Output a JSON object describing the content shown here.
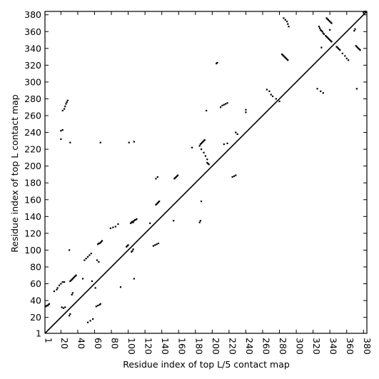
{
  "chart_data": {
    "type": "scatter",
    "xlabel": "Residue index of top L/5 contact map",
    "ylabel": "Residue index of top L contact map",
    "xlim": [
      1,
      384
    ],
    "ylim": [
      1,
      384
    ],
    "xticks": [
      1,
      20,
      40,
      60,
      80,
      100,
      120,
      140,
      160,
      180,
      200,
      220,
      240,
      260,
      280,
      300,
      320,
      340,
      360,
      380
    ],
    "yticks": [
      1,
      20,
      40,
      60,
      80,
      100,
      120,
      140,
      160,
      180,
      200,
      220,
      240,
      260,
      280,
      300,
      320,
      340,
      360,
      380
    ],
    "grid": false,
    "diagonal": [
      [
        1,
        1
      ],
      [
        384,
        384
      ]
    ],
    "series": [
      {
        "marker_color": "#000000",
        "points": [
          [
            2,
            33
          ],
          [
            3,
            34
          ],
          [
            4,
            34
          ],
          [
            5,
            35
          ],
          [
            6,
            36
          ],
          [
            12,
            51
          ],
          [
            15,
            53
          ],
          [
            16,
            55
          ],
          [
            18,
            58
          ],
          [
            20,
            60
          ],
          [
            22,
            62
          ],
          [
            24,
            62
          ],
          [
            20,
            242
          ],
          [
            22,
            243
          ],
          [
            22,
            266
          ],
          [
            24,
            268
          ],
          [
            25,
            271
          ],
          [
            26,
            274
          ],
          [
            27,
            276
          ],
          [
            28,
            278
          ],
          [
            20,
            232
          ],
          [
            31,
            228
          ],
          [
            30,
            100
          ],
          [
            21,
            32
          ],
          [
            23,
            31
          ],
          [
            25,
            32
          ],
          [
            30,
            22
          ],
          [
            31,
            24
          ],
          [
            33,
            47
          ],
          [
            34,
            49
          ],
          [
            31,
            63
          ],
          [
            32,
            64
          ],
          [
            33,
            65
          ],
          [
            34,
            66
          ],
          [
            35,
            67
          ],
          [
            36,
            68
          ],
          [
            37,
            69
          ],
          [
            38,
            70
          ],
          [
            46,
            66
          ],
          [
            48,
            88
          ],
          [
            50,
            90
          ],
          [
            52,
            92
          ],
          [
            54,
            94
          ],
          [
            56,
            96
          ],
          [
            55,
            16
          ],
          [
            58,
            18
          ],
          [
            52,
            14
          ],
          [
            57,
            63
          ],
          [
            61,
            55
          ],
          [
            62,
            33
          ],
          [
            64,
            34
          ],
          [
            66,
            35
          ],
          [
            67,
            36
          ],
          [
            63,
            88
          ],
          [
            65,
            86
          ],
          [
            64,
            107
          ],
          [
            65,
            108
          ],
          [
            66,
            108
          ],
          [
            67,
            109
          ],
          [
            68,
            110
          ],
          [
            69,
            111
          ],
          [
            67,
            228
          ],
          [
            79,
            126
          ],
          [
            82,
            127
          ],
          [
            85,
            128
          ],
          [
            88,
            131
          ],
          [
            91,
            56
          ],
          [
            98,
            104
          ],
          [
            99,
            105
          ],
          [
            100,
            106
          ],
          [
            104,
            98
          ],
          [
            105,
            99
          ],
          [
            106,
            101
          ],
          [
            103,
            132
          ],
          [
            104,
            133
          ],
          [
            105,
            134
          ],
          [
            106,
            133
          ],
          [
            107,
            135
          ],
          [
            108,
            136
          ],
          [
            109,
            136
          ],
          [
            110,
            137
          ],
          [
            101,
            228
          ],
          [
            107,
            229
          ],
          [
            107,
            66
          ],
          [
            126,
            132
          ],
          [
            130,
            105
          ],
          [
            132,
            106
          ],
          [
            134,
            107
          ],
          [
            136,
            108
          ],
          [
            133,
            154
          ],
          [
            134,
            155
          ],
          [
            135,
            156
          ],
          [
            136,
            157
          ],
          [
            137,
            158
          ],
          [
            133,
            185
          ],
          [
            135,
            187
          ],
          [
            154,
            135
          ],
          [
            155,
            185
          ],
          [
            156,
            186
          ],
          [
            157,
            187
          ],
          [
            158,
            188
          ],
          [
            159,
            189
          ],
          [
            176,
            222
          ],
          [
            185,
            133
          ],
          [
            186,
            135
          ],
          [
            187,
            158
          ],
          [
            185,
            224
          ],
          [
            186,
            226
          ],
          [
            187,
            227
          ],
          [
            188,
            228
          ],
          [
            189,
            229
          ],
          [
            190,
            230
          ],
          [
            191,
            231
          ],
          [
            187,
            220
          ],
          [
            190,
            216
          ],
          [
            192,
            212
          ],
          [
            194,
            208
          ],
          [
            194,
            204
          ],
          [
            195,
            203
          ],
          [
            196,
            202
          ],
          [
            193,
            266
          ],
          [
            205,
            322
          ],
          [
            206,
            323
          ],
          [
            210,
            270
          ],
          [
            212,
            272
          ],
          [
            214,
            273
          ],
          [
            216,
            274
          ],
          [
            218,
            275
          ],
          [
            214,
            226
          ],
          [
            218,
            227
          ],
          [
            224,
            187
          ],
          [
            226,
            188
          ],
          [
            228,
            189
          ],
          [
            228,
            240
          ],
          [
            230,
            238
          ],
          [
            240,
            264
          ],
          [
            240,
            267
          ],
          [
            265,
            291
          ],
          [
            268,
            289
          ],
          [
            270,
            285
          ],
          [
            272,
            283
          ],
          [
            276,
            280
          ],
          [
            280,
            277
          ],
          [
            283,
            333
          ],
          [
            284,
            332
          ],
          [
            285,
            331
          ],
          [
            286,
            330
          ],
          [
            287,
            329
          ],
          [
            288,
            328
          ],
          [
            289,
            327
          ],
          [
            290,
            326
          ],
          [
            285,
            376
          ],
          [
            287,
            374
          ],
          [
            289,
            372
          ],
          [
            290,
            369
          ],
          [
            291,
            366
          ],
          [
            327,
            366
          ],
          [
            328,
            364
          ],
          [
            329,
            362
          ],
          [
            330,
            361
          ],
          [
            331,
            360
          ],
          [
            332,
            358
          ],
          [
            333,
            357
          ],
          [
            335,
            355
          ],
          [
            336,
            354
          ],
          [
            337,
            353
          ],
          [
            338,
            352
          ],
          [
            339,
            351
          ],
          [
            340,
            350
          ],
          [
            341,
            349
          ],
          [
            342,
            348
          ],
          [
            336,
            376
          ],
          [
            337,
            375
          ],
          [
            338,
            374
          ],
          [
            339,
            373
          ],
          [
            340,
            372
          ],
          [
            341,
            371
          ],
          [
            342,
            370
          ],
          [
            325,
            292
          ],
          [
            329,
            289
          ],
          [
            332,
            287
          ],
          [
            330,
            341
          ],
          [
            340,
            362
          ],
          [
            348,
            342
          ],
          [
            349,
            341
          ],
          [
            350,
            340
          ],
          [
            351,
            339
          ],
          [
            352,
            338
          ],
          [
            355,
            334
          ],
          [
            358,
            331
          ],
          [
            360,
            328
          ],
          [
            362,
            326
          ],
          [
            369,
            361
          ],
          [
            370,
            363
          ],
          [
            372,
            292
          ],
          [
            371,
            343
          ],
          [
            372,
            342
          ],
          [
            373,
            341
          ],
          [
            374,
            340
          ],
          [
            375,
            339
          ],
          [
            376,
            338
          ],
          [
            380,
            383
          ],
          [
            382,
            384
          ]
        ]
      }
    ]
  }
}
